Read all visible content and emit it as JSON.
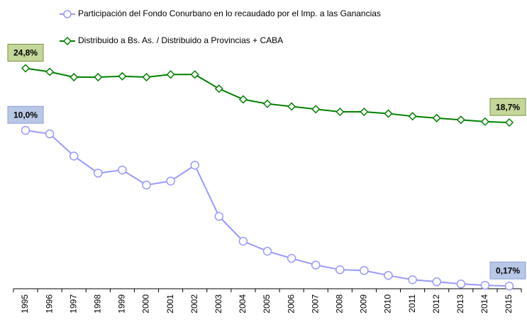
{
  "chart_data": {
    "type": "line",
    "categories": [
      "1995",
      "1996",
      "1997",
      "1998",
      "1999",
      "2000",
      "2001",
      "2002",
      "2003",
      "2004",
      "2005",
      "2006",
      "2007",
      "2008",
      "2009",
      "2010",
      "2011",
      "2012",
      "2013",
      "2014",
      "2015"
    ],
    "ylim": [
      0,
      16
    ],
    "y2lim": [
      0,
      28.5
    ],
    "legend": "top",
    "series": [
      {
        "name": "Participación del Fondo Conurbano en lo recaudado por el Imp.  a las Ganancias",
        "color": "#9999ff",
        "marker": "circle",
        "values": [
          10.0,
          9.78,
          8.38,
          7.3,
          7.5,
          6.55,
          6.8,
          7.8,
          4.57,
          3.0,
          2.37,
          1.92,
          1.5,
          1.2,
          1.15,
          0.84,
          0.57,
          0.44,
          0.3,
          0.22,
          0.17
        ],
        "value_labels": [
          "10,0%",
          null,
          null,
          null,
          null,
          null,
          null,
          null,
          null,
          null,
          null,
          null,
          null,
          null,
          null,
          null,
          null,
          null,
          null,
          null,
          "0,17%"
        ]
      },
      {
        "name": "Distribuido a Bs. As. / Distribuido a Provincias + CABA",
        "color": "#008000",
        "marker": "diamond",
        "axis": "y2",
        "values": [
          24.8,
          24.4,
          23.8,
          23.8,
          23.9,
          23.8,
          24.1,
          24.1,
          22.5,
          21.3,
          20.8,
          20.5,
          20.2,
          19.9,
          19.9,
          19.7,
          19.4,
          19.2,
          19.0,
          18.8,
          18.7
        ],
        "value_labels": [
          "24,8%",
          null,
          null,
          null,
          null,
          null,
          null,
          null,
          null,
          null,
          null,
          null,
          null,
          null,
          null,
          null,
          null,
          null,
          null,
          null,
          "18,7%"
        ]
      }
    ]
  }
}
